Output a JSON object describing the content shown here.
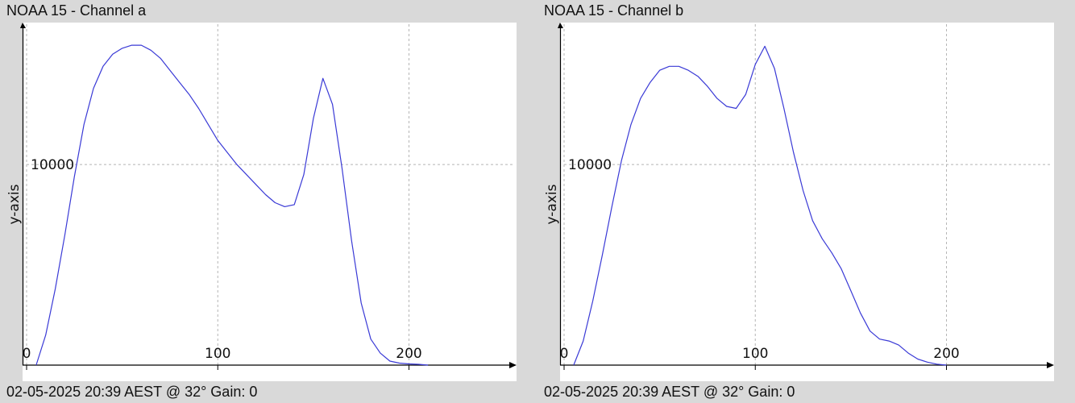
{
  "chart_data": [
    {
      "type": "line",
      "title": "NOAA 15 - Channel a",
      "ylabel": "y-axis",
      "footer": "02-05-2025 20:39 AEST @ 32° Gain: 0",
      "xlim": [
        0,
        255
      ],
      "ylim": [
        0,
        17000
      ],
      "xticks": [
        0,
        100,
        200
      ],
      "xtick_labels": [
        "0",
        "100",
        "200"
      ],
      "yticks": [
        10000
      ],
      "ytick_labels": [
        "10000"
      ],
      "grid": true,
      "line_color": "#3a3ad6",
      "series": [
        {
          "x": [
            5,
            10,
            15,
            20,
            25,
            30,
            35,
            40,
            45,
            50,
            55,
            60,
            65,
            70,
            75,
            80,
            85,
            90,
            95,
            100,
            105,
            110,
            115,
            120,
            125,
            130,
            135,
            140,
            145,
            150,
            155,
            160,
            165,
            170,
            175,
            180,
            185,
            190,
            195,
            200,
            205,
            210
          ],
          "y": [
            0,
            1500,
            3800,
            6500,
            9400,
            12000,
            13800,
            14900,
            15500,
            15800,
            15950,
            15950,
            15700,
            15300,
            14700,
            14100,
            13500,
            12800,
            12000,
            11200,
            10600,
            10000,
            9500,
            9000,
            8500,
            8100,
            7900,
            8000,
            9500,
            12300,
            14300,
            13000,
            9800,
            6200,
            3100,
            1300,
            600,
            200,
            100,
            60,
            40,
            0
          ]
        }
      ]
    },
    {
      "type": "line",
      "title": "NOAA 15 - Channel b",
      "ylabel": "y-axis",
      "footer": "02-05-2025 20:39 AEST @ 32° Gain: 0",
      "xlim": [
        0,
        255
      ],
      "ylim": [
        0,
        17000
      ],
      "xticks": [
        0,
        100,
        200
      ],
      "xtick_labels": [
        "0",
        "100",
        "200"
      ],
      "yticks": [
        10000
      ],
      "ytick_labels": [
        "10000"
      ],
      "grid": true,
      "line_color": "#3a3ad6",
      "series": [
        {
          "x": [
            5,
            10,
            15,
            20,
            25,
            30,
            35,
            40,
            45,
            50,
            55,
            60,
            65,
            70,
            75,
            80,
            85,
            90,
            95,
            100,
            105,
            110,
            115,
            120,
            125,
            130,
            135,
            140,
            145,
            150,
            155,
            160,
            165,
            170,
            175,
            180,
            185,
            190,
            195,
            200
          ],
          "y": [
            0,
            1200,
            3200,
            5500,
            7900,
            10200,
            12000,
            13300,
            14100,
            14700,
            14900,
            14900,
            14700,
            14400,
            13900,
            13300,
            12900,
            12800,
            13500,
            15000,
            15900,
            14800,
            12800,
            10600,
            8700,
            7200,
            6300,
            5600,
            4800,
            3700,
            2600,
            1700,
            1300,
            1200,
            1000,
            600,
            300,
            150,
            50,
            0
          ]
        }
      ]
    }
  ]
}
